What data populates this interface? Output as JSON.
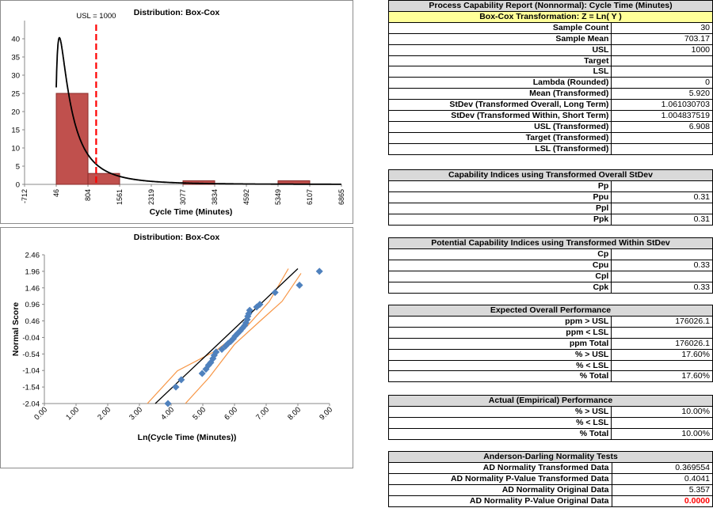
{
  "chart_data": [
    {
      "type": "bar",
      "title": "Distribution: Box-Cox",
      "xlabel": "Cycle Time (Minutes)",
      "ylabel": "",
      "x_ticks": [
        "-712",
        "46",
        "804",
        "1561",
        "2319",
        "3077",
        "3834",
        "4592",
        "5349",
        "6107",
        "6865"
      ],
      "y_ticks": [
        "0",
        "5",
        "10",
        "15",
        "20",
        "25",
        "30",
        "35",
        "40"
      ],
      "xlim": [
        -712,
        6865
      ],
      "ylim": [
        0,
        45
      ],
      "bins": [
        {
          "from": 46,
          "to": 804,
          "count": 25
        },
        {
          "from": 804,
          "to": 1561,
          "count": 3
        },
        {
          "from": 3077,
          "to": 3834,
          "count": 1
        },
        {
          "from": 5349,
          "to": 6107,
          "count": 1
        }
      ],
      "usl": {
        "value": 1000,
        "label": "USL = 1000"
      },
      "fit_curve": "lognormal density, mean log 5.920, sd log 1.061",
      "colors": {
        "bar": "#c0504d",
        "bar_edge": "#8b2d2b",
        "usl_line": "#ff0000",
        "curve": "#000000"
      }
    },
    {
      "type": "scatter",
      "title": "Distribution: Box-Cox",
      "xlabel": "Ln(Cycle Time (Minutes))",
      "ylabel": "Normal Score",
      "x_ticks": [
        "0.00",
        "1.00",
        "2.00",
        "3.00",
        "4.00",
        "5.00",
        "6.00",
        "7.00",
        "8.00",
        "9.00"
      ],
      "y_ticks": [
        "2.46",
        "1.96",
        "1.46",
        "0.96",
        "0.46",
        "-0.04",
        "-0.54",
        "-1.04",
        "-1.54",
        "-2.04"
      ],
      "xlim": [
        0,
        9
      ],
      "ylim": [
        -2.04,
        2.46
      ],
      "points": [
        [
          3.9,
          -2.04
        ],
        [
          4.15,
          -1.54
        ],
        [
          4.32,
          -1.32
        ],
        [
          4.98,
          -1.13
        ],
        [
          5.1,
          -1.0
        ],
        [
          5.18,
          -0.88
        ],
        [
          5.25,
          -0.8
        ],
        [
          5.32,
          -0.68
        ],
        [
          5.36,
          -0.58
        ],
        [
          5.42,
          -0.48
        ],
        [
          5.6,
          -0.4
        ],
        [
          5.72,
          -0.3
        ],
        [
          5.8,
          -0.22
        ],
        [
          5.88,
          -0.16
        ],
        [
          5.96,
          -0.08
        ],
        [
          6.02,
          0.0
        ],
        [
          6.1,
          0.08
        ],
        [
          6.18,
          0.16
        ],
        [
          6.25,
          0.24
        ],
        [
          6.32,
          0.32
        ],
        [
          6.36,
          0.4
        ],
        [
          6.4,
          0.5
        ],
        [
          6.42,
          0.6
        ],
        [
          6.45,
          0.68
        ],
        [
          6.48,
          0.78
        ],
        [
          6.7,
          0.88
        ],
        [
          6.8,
          0.96
        ],
        [
          7.28,
          1.32
        ],
        [
          8.05,
          1.54
        ],
        [
          8.68,
          1.96
        ]
      ],
      "fit_line": [
        [
          3.5,
          -2.04
        ],
        [
          8.0,
          2.04
        ]
      ],
      "band_lower": [
        [
          4.45,
          -2.04
        ],
        [
          5.2,
          -1.25
        ],
        [
          6.0,
          -0.25
        ],
        [
          6.8,
          0.45
        ],
        [
          7.5,
          1.05
        ],
        [
          8.1,
          1.9
        ]
      ],
      "band_upper": [
        [
          3.25,
          -2.04
        ],
        [
          4.2,
          -1.05
        ],
        [
          5.4,
          -0.45
        ],
        [
          6.4,
          0.3
        ],
        [
          7.1,
          1.05
        ],
        [
          7.7,
          2.04
        ]
      ],
      "colors": {
        "points": "#4f81bd",
        "fit": "#000000",
        "band": "#f79646"
      }
    }
  ],
  "report": {
    "title": "Process Capability Report (Nonnormal): Cycle Time (Minutes)",
    "subtitle": "Box-Cox Transformation: Z = Ln( Y )",
    "rows": [
      {
        "label": "Sample Count",
        "value": "30"
      },
      {
        "label": "Sample Mean",
        "value": "703.17"
      },
      {
        "label": "USL",
        "value": "1000"
      },
      {
        "label": "Target",
        "value": ""
      },
      {
        "label": "LSL",
        "value": ""
      },
      {
        "label": "Lambda (Rounded)",
        "value": "0"
      },
      {
        "label": "Mean (Transformed)",
        "value": "5.920"
      },
      {
        "label": "StDev (Transformed Overall, Long Term)",
        "value": "1.061030703"
      },
      {
        "label": "StDev (Transformed Within, Short Term)",
        "value": "1.004837519"
      },
      {
        "label": "USL (Transformed)",
        "value": "6.908"
      },
      {
        "label": "Target (Transformed)",
        "value": ""
      },
      {
        "label": "LSL (Transformed)",
        "value": ""
      }
    ]
  },
  "overall_indices": {
    "title": "Capability Indices using Transformed Overall StDev",
    "rows": [
      {
        "label": "Pp",
        "value": ""
      },
      {
        "label": "Ppu",
        "value": "0.31"
      },
      {
        "label": "Ppl",
        "value": ""
      },
      {
        "label": "Ppk",
        "value": "0.31"
      }
    ]
  },
  "within_indices": {
    "title": "Potential Capability Indices using Transformed Within StDev",
    "rows": [
      {
        "label": "Cp",
        "value": ""
      },
      {
        "label": "Cpu",
        "value": "0.33"
      },
      {
        "label": "Cpl",
        "value": ""
      },
      {
        "label": "Cpk",
        "value": "0.33"
      }
    ]
  },
  "expected": {
    "title": "Expected Overall Performance",
    "rows": [
      {
        "label": "ppm > USL",
        "value": "176026.1"
      },
      {
        "label": "ppm < LSL",
        "value": ""
      },
      {
        "label": "ppm Total",
        "value": "176026.1"
      },
      {
        "label": "% > USL",
        "value": "17.60%"
      },
      {
        "label": "% < LSL",
        "value": ""
      },
      {
        "label": "% Total",
        "value": "17.60%"
      }
    ]
  },
  "actual": {
    "title": "Actual (Empirical) Performance",
    "rows": [
      {
        "label": "% > USL",
        "value": "10.00%"
      },
      {
        "label": "% < LSL",
        "value": ""
      },
      {
        "label": "% Total",
        "value": "10.00%"
      }
    ]
  },
  "ad_tests": {
    "title": "Anderson-Darling Normality Tests",
    "rows": [
      {
        "label": "AD Normality Transformed Data",
        "value": "0.369554"
      },
      {
        "label": "AD Normality P-Value Transformed Data",
        "value": "0.4041"
      },
      {
        "label": "AD Normality Original Data",
        "value": "5.357"
      },
      {
        "label": "AD Normality P-Value Original Data",
        "value": "0.0000",
        "highlight": true
      }
    ]
  }
}
